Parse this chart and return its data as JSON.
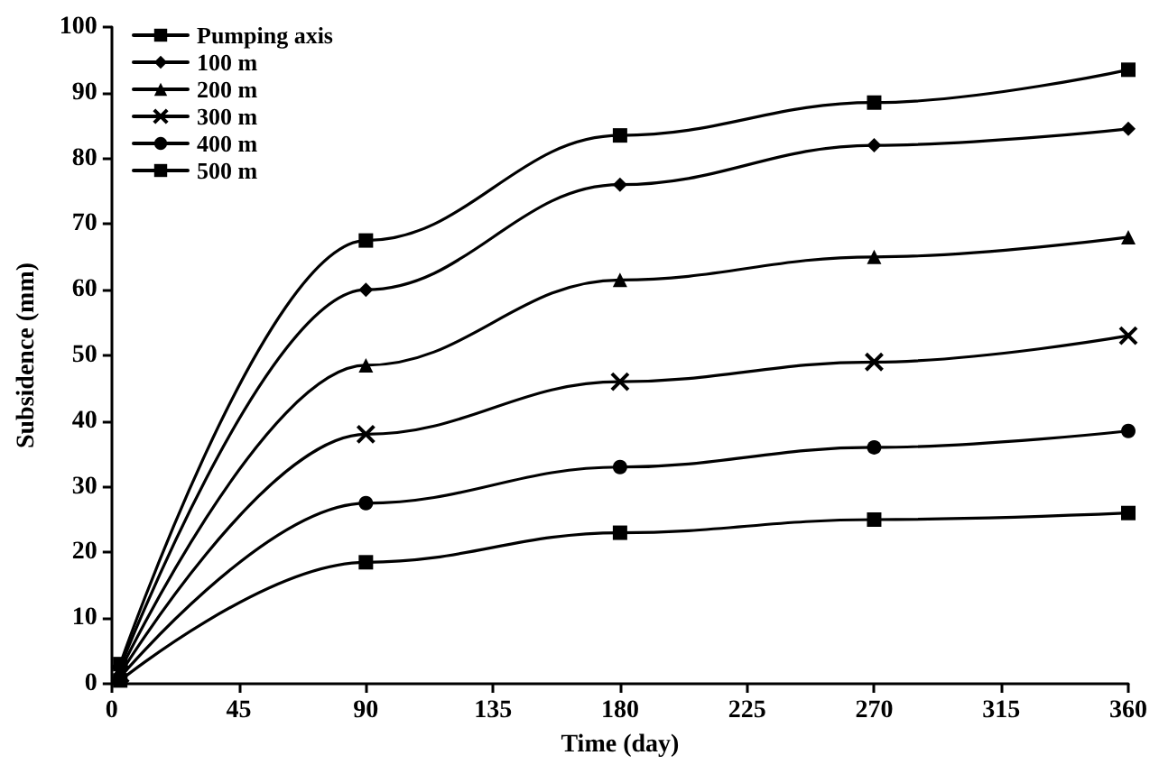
{
  "chart_data": {
    "type": "line",
    "xlabel": "Time (day)",
    "ylabel": "Subsidence (mm)",
    "x": [
      3,
      90,
      180,
      270,
      360
    ],
    "series": [
      {
        "name": "Pumping axis",
        "color": "#000000",
        "marker": "square",
        "values": [
          3,
          67.5,
          83.5,
          88.5,
          93.5
        ]
      },
      {
        "name": "100 m",
        "color": "#000000",
        "marker": "diamond",
        "values": [
          2.5,
          60,
          76,
          82,
          84.5
        ]
      },
      {
        "name": "200 m",
        "color": "#000000",
        "marker": "triangle",
        "values": [
          2,
          48.5,
          61.5,
          65,
          68
        ]
      },
      {
        "name": "300 m",
        "color": "#000000",
        "marker": "cross",
        "values": [
          1.5,
          38,
          46,
          49,
          53
        ]
      },
      {
        "name": "400 m",
        "color": "#000000",
        "marker": "circle",
        "values": [
          1,
          27.5,
          33,
          36,
          38.5
        ]
      },
      {
        "name": "500 m",
        "color": "#000000",
        "marker": "square",
        "values": [
          0.5,
          18.5,
          23,
          25,
          26
        ]
      }
    ],
    "xlim": [
      0,
      360
    ],
    "xticks": [
      0,
      45,
      90,
      135,
      180,
      225,
      270,
      315,
      360
    ],
    "ylim": [
      0,
      100
    ],
    "yticks": [
      0,
      10,
      20,
      30,
      40,
      50,
      60,
      70,
      80,
      90,
      100
    ],
    "grid": false,
    "legend": "top left",
    "line_style": "solid"
  }
}
